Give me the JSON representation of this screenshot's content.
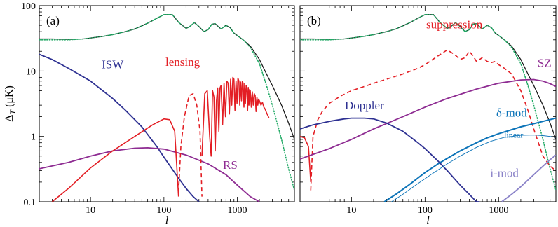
{
  "chart_data": [
    {
      "type": "line",
      "panel_label": "(a)",
      "xscale": "log",
      "yscale": "log",
      "xlim": [
        2,
        6000
      ],
      "ylim": [
        0.1,
        100
      ],
      "xlabel": "l",
      "ylabel": "ΔT (μK)",
      "ylabel_main": "Δ",
      "ylabel_sub": "T",
      "ylabel_unit": " (μK)",
      "xticks": [
        {
          "v": 10,
          "label": "10"
        },
        {
          "v": 100,
          "label": "100"
        },
        {
          "v": 1000,
          "label": "1000"
        }
      ],
      "yticks": [
        {
          "v": 0.1,
          "label": "0.1"
        },
        {
          "v": 1,
          "label": "1"
        },
        {
          "v": 10,
          "label": "10"
        },
        {
          "v": 100,
          "label": "100"
        }
      ],
      "series": [
        {
          "name": "",
          "color": "#1a1a1a",
          "style": "solid",
          "width": 1.3,
          "x": [
            2,
            3,
            5,
            8,
            10,
            15,
            20,
            30,
            40,
            50,
            60,
            80,
            100,
            130,
            160,
            200,
            220,
            260,
            300,
            350,
            400,
            450,
            500,
            550,
            600,
            700,
            800,
            900,
            1000,
            1200,
            1500,
            2000,
            2500,
            3000,
            4000,
            5000,
            6000
          ],
          "y": [
            31,
            31,
            30.5,
            31,
            32,
            34,
            36,
            40,
            44,
            49,
            54,
            64,
            73,
            73,
            55,
            45,
            47,
            55,
            48,
            40,
            43,
            52,
            53,
            48,
            44,
            50,
            46,
            38,
            35,
            30,
            24,
            15,
            9,
            6,
            3,
            1.6,
            0.9
          ]
        },
        {
          "name": "",
          "color": "#22aa66",
          "style": "dotted",
          "width": 1.6,
          "x": [
            2,
            3,
            5,
            8,
            10,
            15,
            20,
            30,
            40,
            50,
            60,
            80,
            100,
            130,
            160,
            200,
            220,
            260,
            300,
            350,
            400,
            450,
            500,
            550,
            600,
            700,
            800,
            900,
            1000,
            1200,
            1500,
            2000,
            2500,
            3000,
            4000,
            5000,
            6000
          ],
          "y": [
            30,
            30,
            30,
            31,
            32,
            34,
            36,
            40,
            44,
            49,
            54,
            64,
            73,
            73,
            55,
            45,
            47,
            55,
            48,
            40,
            43,
            52,
            53,
            48,
            44,
            50,
            46,
            38,
            35,
            30,
            23,
            13,
            6,
            3,
            0.9,
            0.32,
            0.15
          ]
        },
        {
          "name": "ISW",
          "color": "#2e3192",
          "style": "solid",
          "width": 1.8,
          "x": [
            2,
            3,
            5,
            10,
            20,
            30,
            50,
            80,
            100,
            150,
            200,
            250,
            300
          ],
          "y": [
            18,
            15,
            11,
            7,
            3.8,
            2.5,
            1.4,
            0.7,
            0.48,
            0.25,
            0.16,
            0.12,
            0.1
          ]
        },
        {
          "name": "RS",
          "color": "#8e2c92",
          "style": "solid",
          "width": 1.8,
          "x": [
            2,
            5,
            10,
            20,
            40,
            60,
            100,
            200,
            400,
            700,
            1000,
            1500,
            2000
          ],
          "y": [
            0.32,
            0.4,
            0.5,
            0.6,
            0.66,
            0.67,
            0.64,
            0.52,
            0.38,
            0.26,
            0.18,
            0.12,
            0.1
          ]
        },
        {
          "name": "lensing",
          "color": "#e31e24",
          "style": "solid",
          "width": 1.6,
          "x": [
            3,
            5,
            10,
            20,
            40,
            70,
            100,
            120,
            140,
            158
          ],
          "y": [
            0.1,
            0.16,
            0.33,
            0.6,
            1.0,
            1.5,
            1.85,
            1.8,
            1.2,
            0.12
          ]
        },
        {
          "name": "",
          "color": "#e31e24",
          "style": "dashed",
          "width": 1.6,
          "x": [
            158,
            170,
            190,
            220,
            250,
            280,
            310,
            330
          ],
          "y": [
            0.14,
            0.7,
            2.0,
            4.2,
            4.5,
            3.0,
            1.2,
            0.12
          ]
        },
        {
          "name": "",
          "color": "#e31e24",
          "style": "solid",
          "width": 1.6,
          "x": [
            330,
            360,
            390,
            420,
            440,
            460,
            480,
            500,
            520,
            540,
            560,
            580,
            600,
            630,
            660,
            690,
            720,
            750,
            780,
            810,
            840,
            870,
            900,
            930,
            960,
            990,
            1020,
            1050,
            1080,
            1110,
            1140,
            1170,
            1200,
            1230,
            1260,
            1290,
            1320,
            1350,
            1380,
            1410,
            1440,
            1470,
            1500,
            1550,
            1600,
            1650,
            1700,
            1750,
            1800,
            1850,
            1900,
            1950,
            2000,
            2100,
            2200,
            2300,
            2400,
            2500,
            2600,
            2700
          ],
          "y": [
            0.5,
            4.5,
            5.0,
            1.0,
            0.5,
            5.0,
            4.0,
            0.6,
            3.5,
            5.5,
            1.2,
            5.5,
            6.0,
            1.5,
            6.5,
            2.0,
            7.0,
            6.5,
            2.2,
            7.5,
            3.0,
            8.0,
            7.5,
            2.5,
            7.0,
            3.2,
            7.8,
            7.0,
            3.0,
            6.8,
            3.5,
            7.0,
            6.5,
            2.8,
            6.5,
            3.2,
            6.0,
            5.8,
            2.5,
            5.6,
            3.0,
            5.2,
            5.0,
            2.8,
            4.8,
            3.0,
            4.5,
            4.2,
            2.4,
            4.0,
            3.0,
            3.7,
            3.5,
            3.0,
            3.3,
            2.8,
            2.6,
            2.3,
            2.1,
            1.9
          ]
        }
      ],
      "labels": [
        {
          "text": "ISW",
          "x": 20,
          "y": 11,
          "color": "#2e3192"
        },
        {
          "text": "lensing",
          "x": 180,
          "y": 12,
          "color": "#e31e24"
        },
        {
          "text": "RS",
          "x": 800,
          "y": 0.32,
          "color": "#8e2c92"
        }
      ]
    },
    {
      "type": "line",
      "panel_label": "(b)",
      "xscale": "log",
      "yscale": "log",
      "xlim": [
        2,
        6000
      ],
      "ylim": [
        0.1,
        100
      ],
      "xlabel": "l",
      "ylabel": "",
      "xticks": [
        {
          "v": 10,
          "label": "10"
        },
        {
          "v": 100,
          "label": "100"
        },
        {
          "v": 1000,
          "label": "1000"
        }
      ],
      "yticks": [
        {
          "v": 0.1,
          "label": ""
        },
        {
          "v": 1,
          "label": ""
        },
        {
          "v": 10,
          "label": ""
        },
        {
          "v": 100,
          "label": ""
        }
      ],
      "series": [
        {
          "name": "",
          "color": "#1a1a1a",
          "style": "solid",
          "width": 1.3,
          "x": [
            2,
            3,
            5,
            8,
            10,
            15,
            20,
            30,
            40,
            50,
            60,
            80,
            100,
            130,
            160,
            200,
            220,
            260,
            300,
            350,
            400,
            450,
            500,
            550,
            600,
            700,
            800,
            900,
            1000,
            1200,
            1500,
            2000,
            2500,
            3000,
            4000,
            5000,
            6000
          ],
          "y": [
            31,
            31,
            30.5,
            31,
            32,
            34,
            36,
            40,
            44,
            49,
            54,
            64,
            73,
            73,
            55,
            45,
            47,
            55,
            48,
            40,
            43,
            52,
            53,
            48,
            44,
            50,
            46,
            38,
            35,
            30,
            24,
            15,
            9,
            6,
            3,
            1.6,
            0.9
          ]
        },
        {
          "name": "",
          "color": "#22aa66",
          "style": "dotted",
          "width": 1.6,
          "x": [
            2,
            3,
            5,
            8,
            10,
            15,
            20,
            30,
            40,
            50,
            60,
            80,
            100,
            130,
            160,
            200,
            220,
            260,
            300,
            350,
            400,
            450,
            500,
            550,
            600,
            700,
            800,
            900,
            1000,
            1200,
            1500,
            2000,
            2500,
            3000,
            4000,
            5000,
            6000
          ],
          "y": [
            30,
            30,
            30,
            31,
            32,
            34,
            36,
            40,
            44,
            49,
            54,
            64,
            73,
            73,
            55,
            45,
            47,
            55,
            48,
            40,
            43,
            52,
            53,
            48,
            44,
            50,
            46,
            38,
            35,
            30,
            23,
            13,
            6,
            3,
            0.9,
            0.32,
            0.15
          ]
        },
        {
          "name": "",
          "color": "#e31e24",
          "style": "solid",
          "width": 1.6,
          "x": [
            2,
            2.3,
            2.6,
            2.8
          ],
          "y": [
            1.0,
            0.95,
            0.7,
            0.2
          ]
        },
        {
          "name": "suppression",
          "color": "#e31e24",
          "style": "dashed",
          "width": 1.6,
          "x": [
            2.8,
            3,
            3.5,
            4,
            5,
            7,
            10,
            15,
            20,
            30,
            50,
            80,
            100,
            150,
            200,
            250,
            300,
            350,
            400,
            450,
            500,
            550,
            600,
            700,
            800,
            900,
            1000,
            1200,
            1500,
            2000,
            2500,
            3000,
            4000,
            5000,
            6000
          ],
          "y": [
            0.15,
            1.0,
            1.8,
            2.4,
            3.2,
            4.1,
            5.0,
            5.8,
            6.5,
            7.5,
            9,
            11,
            12.5,
            17,
            21,
            18,
            15,
            16,
            20,
            17,
            14,
            15,
            16,
            14,
            13.5,
            14,
            12.5,
            11,
            9,
            5,
            2.5,
            1.3,
            0.5,
            0.35,
            0.3
          ]
        },
        {
          "name": "SZ",
          "color": "#8e2c92",
          "style": "solid",
          "width": 1.8,
          "x": [
            2,
            3,
            5,
            10,
            20,
            50,
            100,
            200,
            500,
            1000,
            2000,
            3000,
            4000,
            5000,
            6000
          ],
          "y": [
            0.45,
            0.53,
            0.65,
            0.9,
            1.3,
            2.0,
            2.8,
            3.8,
            5.3,
            6.5,
            7.3,
            7.4,
            7.0,
            6.4,
            5.8
          ]
        },
        {
          "name": "Doppler",
          "color": "#2e3192",
          "style": "solid",
          "width": 1.8,
          "x": [
            2,
            3,
            5,
            8,
            10,
            15,
            20,
            30,
            50,
            80,
            100,
            150,
            200,
            300,
            400,
            500,
            550
          ],
          "y": [
            1.3,
            1.5,
            1.7,
            1.85,
            1.9,
            1.9,
            1.85,
            1.6,
            1.2,
            0.8,
            0.65,
            0.42,
            0.3,
            0.18,
            0.13,
            0.1,
            0.1
          ]
        },
        {
          "name": "δ-mod",
          "color": "#0b73b8",
          "style": "solid",
          "width": 2.0,
          "x": [
            28,
            40,
            60,
            100,
            150,
            200,
            300,
            500,
            700,
            1000,
            2000,
            4000,
            6000
          ],
          "y": [
            0.1,
            0.13,
            0.18,
            0.28,
            0.38,
            0.46,
            0.6,
            0.8,
            0.95,
            1.1,
            1.4,
            1.7,
            1.9
          ]
        },
        {
          "name": "linear",
          "color": "#0b73b8",
          "style": "solid",
          "width": 0.9,
          "x": [
            35,
            50,
            80,
            120,
            200,
            300,
            500,
            800,
            1200,
            2000,
            3000,
            4000,
            5000,
            6000
          ],
          "y": [
            0.1,
            0.13,
            0.19,
            0.26,
            0.38,
            0.5,
            0.68,
            0.85,
            0.97,
            1.04,
            1.05,
            1.03,
            1.0,
            0.97
          ]
        },
        {
          "name": "i-mod",
          "color": "#8a82c8",
          "style": "solid",
          "width": 1.8,
          "x": [
            1100,
            1500,
            2000,
            3000,
            4000,
            5000,
            6000
          ],
          "y": [
            0.1,
            0.13,
            0.17,
            0.26,
            0.35,
            0.44,
            0.52
          ]
        }
      ],
      "labels": [
        {
          "text": "suppression",
          "x": 250,
          "y": 45,
          "color": "#e31e24"
        },
        {
          "text": "SZ",
          "x": 4200,
          "y": 11.5,
          "color": "#8e2c92"
        },
        {
          "text": "Doppler",
          "x": 15,
          "y": 2.6,
          "color": "#2e3192"
        },
        {
          "text": "δ-mod",
          "x": 1500,
          "y": 2.0,
          "color": "#0b73b8"
        },
        {
          "text": "linear",
          "x": 1600,
          "y": 0.95,
          "color": "#0b73b8",
          "small": true
        },
        {
          "text": "i-mod",
          "x": 1200,
          "y": 0.24,
          "color": "#8a82c8"
        }
      ]
    }
  ]
}
